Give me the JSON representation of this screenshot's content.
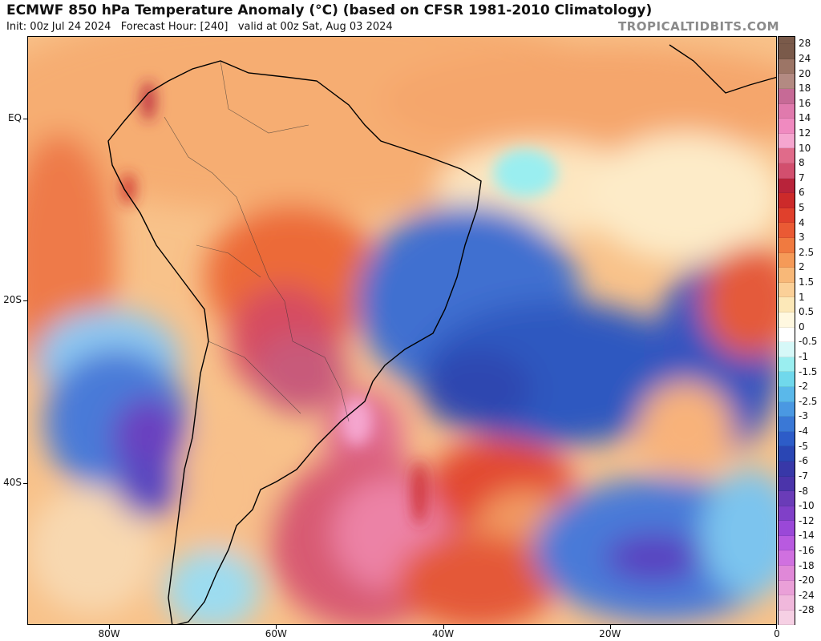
{
  "header": {
    "title": "ECMWF 850 hPa Temperature Anomaly (°C) (based on CFSR 1981-2010 Climatology)",
    "subtitle": "Init: 00z Jul 24 2024   Forecast Hour: [240]   valid at 00z Sat, Aug 03 2024",
    "credit": "TROPICALTIDBITS.COM"
  },
  "axes": {
    "lat_labels": [
      {
        "text": "EQ",
        "lat": 0
      },
      {
        "text": "20S",
        "lat": -20
      },
      {
        "text": "40S",
        "lat": -40
      }
    ],
    "lon_labels": [
      {
        "text": "80W",
        "lon": -80
      },
      {
        "text": "60W",
        "lon": -60
      },
      {
        "text": "40W",
        "lon": -40
      },
      {
        "text": "20W",
        "lon": -20
      },
      {
        "text": "0",
        "lon": 0
      }
    ],
    "lon_range": [
      -89.8,
      0
    ],
    "lat_range": [
      9,
      -55.5
    ]
  },
  "colorbar": {
    "levels": [
      {
        "label": "28",
        "color": "#7a5a4a"
      },
      {
        "label": "24",
        "color": "#9c7566"
      },
      {
        "label": "20",
        "color": "#b38a82"
      },
      {
        "label": "18",
        "color": "#c66a96"
      },
      {
        "label": "16",
        "color": "#e07aad"
      },
      {
        "label": "14",
        "color": "#f08ac0"
      },
      {
        "label": "12",
        "color": "#f5a6cf"
      },
      {
        "label": "10",
        "color": "#e06b8a"
      },
      {
        "label": "8",
        "color": "#d24f6e"
      },
      {
        "label": "7",
        "color": "#b8233a"
      },
      {
        "label": "6",
        "color": "#cc2a2a"
      },
      {
        "label": "5",
        "color": "#e0402c"
      },
      {
        "label": "4",
        "color": "#ea5a34"
      },
      {
        "label": "3",
        "color": "#f07a40"
      },
      {
        "label": "2.5",
        "color": "#f59a58"
      },
      {
        "label": "2",
        "color": "#f8b878"
      },
      {
        "label": "1.5",
        "color": "#fbd098"
      },
      {
        "label": "1",
        "color": "#fce8b8"
      },
      {
        "label": "0.5",
        "color": "#fff8e0"
      },
      {
        "label": "0",
        "color": "#ffffff"
      },
      {
        "label": "-0.5",
        "color": "#d6f8f8"
      },
      {
        "label": "-1",
        "color": "#9aeef0"
      },
      {
        "label": "-1.5",
        "color": "#70d8ec"
      },
      {
        "label": "-2",
        "color": "#5ab8ea"
      },
      {
        "label": "-2.5",
        "color": "#4a98e2"
      },
      {
        "label": "-3",
        "color": "#3a78d6"
      },
      {
        "label": "-4",
        "color": "#2d5cc8"
      },
      {
        "label": "-5",
        "color": "#2a46b4"
      },
      {
        "label": "-6",
        "color": "#3838a8"
      },
      {
        "label": "-7",
        "color": "#4b34aa"
      },
      {
        "label": "-8",
        "color": "#6a3cb8"
      },
      {
        "label": "-10",
        "color": "#8040c8"
      },
      {
        "label": "-12",
        "color": "#9a48d8"
      },
      {
        "label": "-14",
        "color": "#b85ae0"
      },
      {
        "label": "-16",
        "color": "#d070e0"
      },
      {
        "label": "-18",
        "color": "#e088d8"
      },
      {
        "label": "-20",
        "color": "#eaa0d8"
      },
      {
        "label": "-24",
        "color": "#f0b8dc"
      },
      {
        "label": "-28",
        "color": "#f6d0e4"
      }
    ]
  }
}
